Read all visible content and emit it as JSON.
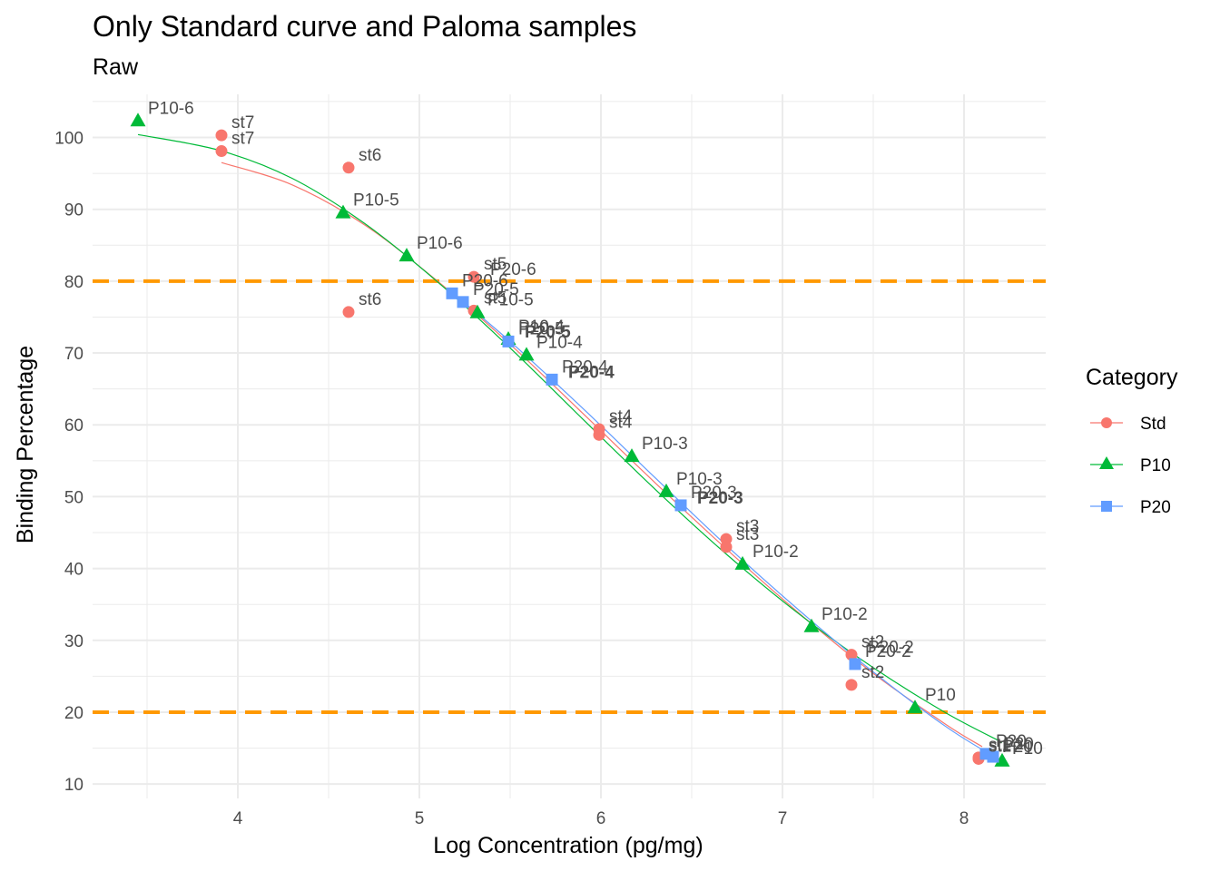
{
  "chart_data": {
    "type": "scatter",
    "title": "Only Standard curve and Paloma samples",
    "subtitle": "Raw",
    "xlabel": "Log Concentration (pg/mg)",
    "ylabel": "Binding Percentage",
    "xlim": [
      3.2,
      8.45
    ],
    "ylim": [
      8,
      106
    ],
    "x_ticks": [
      4,
      5,
      6,
      7,
      8
    ],
    "y_ticks": [
      10,
      20,
      30,
      40,
      50,
      60,
      70,
      80,
      90,
      100
    ],
    "grid": true,
    "legend_position": "right",
    "legend": {
      "title": "Category",
      "entries": [
        {
          "name": "Std",
          "color": "#F8766D",
          "shape": "circle"
        },
        {
          "name": "P10",
          "color": "#00BA38",
          "shape": "triangle"
        },
        {
          "name": "P20",
          "color": "#619CFF",
          "shape": "square"
        }
      ]
    },
    "reference_lines": [
      {
        "axis": "y",
        "value": 80,
        "color": "#FF9900",
        "style": "dashed"
      },
      {
        "axis": "y",
        "value": 20,
        "color": "#FF9900",
        "style": "dashed"
      }
    ],
    "series": [
      {
        "name": "Std",
        "color": "#F8766D",
        "shape": "circle",
        "points": [
          {
            "x": 3.91,
            "y": 100.3,
            "label": "st7"
          },
          {
            "x": 3.91,
            "y": 98.1,
            "label": "st7"
          },
          {
            "x": 4.61,
            "y": 95.8,
            "label": "st6"
          },
          {
            "x": 4.61,
            "y": 75.7,
            "label": "st6"
          },
          {
            "x": 5.3,
            "y": 80.6,
            "label": "st5"
          },
          {
            "x": 5.3,
            "y": 75.9,
            "label": "st5"
          },
          {
            "x": 5.99,
            "y": 59.4,
            "label": "st4"
          },
          {
            "x": 5.99,
            "y": 58.6,
            "label": "st4"
          },
          {
            "x": 6.69,
            "y": 44.1,
            "label": "st3"
          },
          {
            "x": 6.69,
            "y": 43.0,
            "label": "st3"
          },
          {
            "x": 7.38,
            "y": 28.0,
            "label": "st2"
          },
          {
            "x": 7.38,
            "y": 23.8,
            "label": "st2"
          },
          {
            "x": 8.08,
            "y": 13.7,
            "label": "st1"
          },
          {
            "x": 8.08,
            "y": 13.5,
            "label": "st1"
          }
        ],
        "fit": [
          {
            "x": 3.91,
            "y": 96.5
          },
          {
            "x": 4.3,
            "y": 93.4
          },
          {
            "x": 4.7,
            "y": 87.8
          },
          {
            "x": 5.1,
            "y": 80.0
          },
          {
            "x": 5.5,
            "y": 71.2
          },
          {
            "x": 5.9,
            "y": 61.6
          },
          {
            "x": 6.3,
            "y": 51.9
          },
          {
            "x": 6.7,
            "y": 42.5
          },
          {
            "x": 7.1,
            "y": 33.6
          },
          {
            "x": 7.5,
            "y": 25.4
          },
          {
            "x": 7.9,
            "y": 18.3
          },
          {
            "x": 8.1,
            "y": 15.2
          }
        ]
      },
      {
        "name": "P10",
        "color": "#00BA38",
        "shape": "triangle",
        "points": [
          {
            "x": 3.45,
            "y": 102.3,
            "label": "P10-6"
          },
          {
            "x": 4.58,
            "y": 89.5,
            "label": "P10-5"
          },
          {
            "x": 4.93,
            "y": 83.5,
            "label": "P10-6"
          },
          {
            "x": 5.32,
            "y": 75.6,
            "label": "P10-5"
          },
          {
            "x": 5.49,
            "y": 71.9,
            "label": "P10-4"
          },
          {
            "x": 5.59,
            "y": 69.7,
            "label": "P10-4"
          },
          {
            "x": 6.17,
            "y": 55.6,
            "label": "P10-3"
          },
          {
            "x": 6.36,
            "y": 50.7,
            "label": "P10-3"
          },
          {
            "x": 6.78,
            "y": 40.6,
            "label": "P10-2"
          },
          {
            "x": 7.16,
            "y": 31.9,
            "label": "P10-2"
          },
          {
            "x": 7.73,
            "y": 20.6,
            "label": "P10"
          },
          {
            "x": 8.21,
            "y": 13.2,
            "label": "P10"
          }
        ],
        "fit": [
          {
            "x": 3.45,
            "y": 100.4
          },
          {
            "x": 3.9,
            "y": 98.2
          },
          {
            "x": 4.3,
            "y": 94.3
          },
          {
            "x": 4.7,
            "y": 88.0
          },
          {
            "x": 5.1,
            "y": 79.9
          },
          {
            "x": 5.5,
            "y": 70.7
          },
          {
            "x": 5.9,
            "y": 60.8
          },
          {
            "x": 6.3,
            "y": 51.0
          },
          {
            "x": 6.7,
            "y": 41.8
          },
          {
            "x": 7.1,
            "y": 33.5
          },
          {
            "x": 7.5,
            "y": 26.2
          },
          {
            "x": 7.9,
            "y": 19.9
          },
          {
            "x": 8.21,
            "y": 15.8
          }
        ]
      },
      {
        "name": "P20",
        "color": "#619CFF",
        "shape": "square",
        "points": [
          {
            "x": 5.18,
            "y": 78.3,
            "label": "P20-6"
          },
          {
            "x": 5.24,
            "y": 77.1,
            "label": "P20-5"
          },
          {
            "x": 5.49,
            "y": 71.6,
            "label": "P20-5"
          },
          {
            "x": 5.73,
            "y": 66.3,
            "label": "P20-4"
          },
          {
            "x": 6.44,
            "y": 48.8,
            "label": "P20-3"
          },
          {
            "x": 7.4,
            "y": 26.7,
            "label": "P20-2"
          },
          {
            "x": 8.12,
            "y": 14.2,
            "label": "P20"
          },
          {
            "x": 8.16,
            "y": 13.8,
            "label": "P20"
          }
        ],
        "fit": [
          {
            "x": 5.18,
            "y": 78.4
          },
          {
            "x": 5.5,
            "y": 71.6
          },
          {
            "x": 5.9,
            "y": 62.3
          },
          {
            "x": 6.3,
            "y": 52.6
          },
          {
            "x": 6.7,
            "y": 43.0
          },
          {
            "x": 7.1,
            "y": 34.0
          },
          {
            "x": 7.5,
            "y": 25.6
          },
          {
            "x": 7.9,
            "y": 18.0
          },
          {
            "x": 8.16,
            "y": 13.9
          }
        ]
      }
    ],
    "extra_labels": [
      {
        "x": 5.3,
        "y": 80.6,
        "text": "P20-6",
        "color": "#4d4d4d"
      },
      {
        "x": 5.49,
        "y": 71.9,
        "text": "P20-5",
        "bold": true
      },
      {
        "x": 5.73,
        "y": 66.3,
        "text": "P20-4",
        "bold": true
      },
      {
        "x": 6.44,
        "y": 48.8,
        "text": "P20-3",
        "bold": true
      },
      {
        "x": 7.38,
        "y": 28.0,
        "text": "P20-2"
      },
      {
        "x": 8.12,
        "y": 14.2,
        "text": "P20"
      }
    ]
  }
}
